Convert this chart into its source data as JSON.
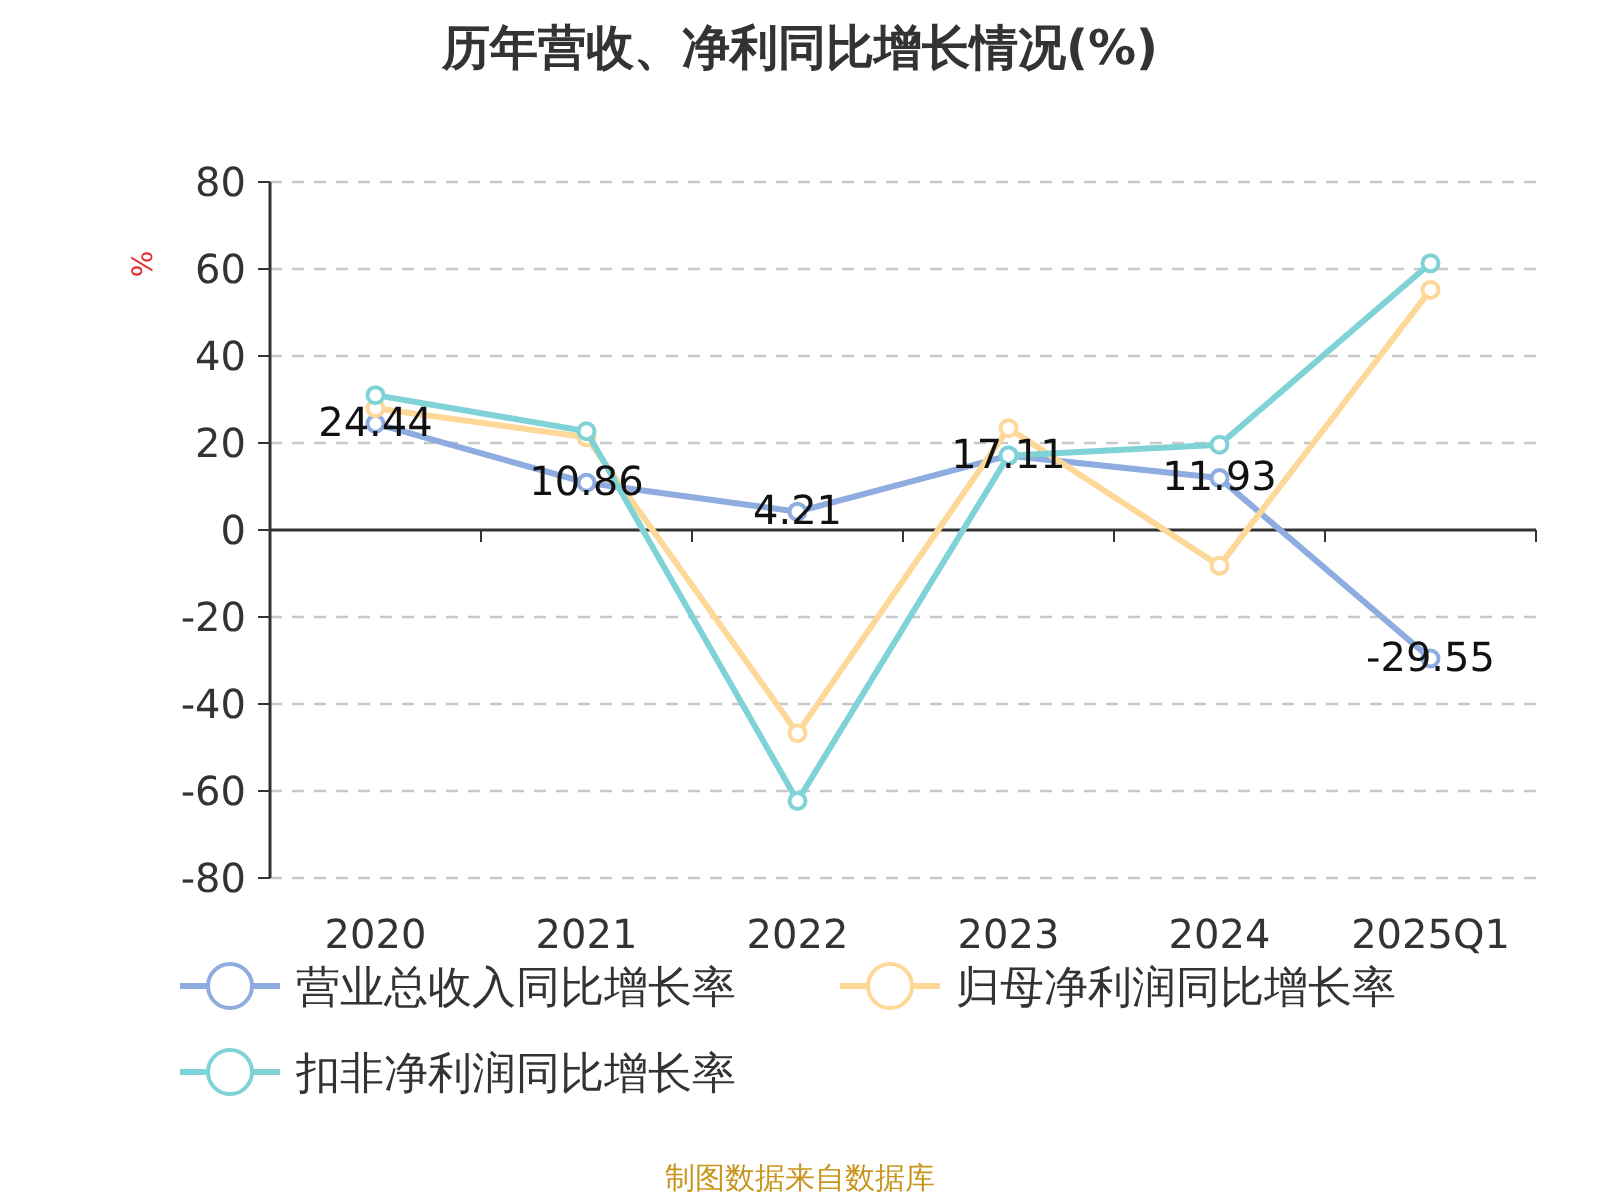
{
  "chart_data": {
    "type": "line",
    "title": "历年营收、净利同比增长情况(%)",
    "ylabel": "%",
    "categories": [
      "2020",
      "2021",
      "2022",
      "2023",
      "2024",
      "2025Q1"
    ],
    "series": [
      {
        "name": "营业总收入同比增长率",
        "color": "#8eacdf",
        "values": [
          24.44,
          10.86,
          4.21,
          17.11,
          11.93,
          -29.55
        ],
        "value_labels": [
          "24.44",
          "10.86",
          "4.21",
          "17.11",
          "11.93",
          "-29.55"
        ]
      },
      {
        "name": "归母净利润同比增长率",
        "color": "#fdd898",
        "values": [
          28,
          21.3,
          -46.7,
          23.4,
          -8.2,
          55.2
        ]
      },
      {
        "name": "扣非净利润同比增长率",
        "color": "#7fd3d6",
        "values": [
          31,
          22.7,
          -62.3,
          17.1,
          19.6,
          61.3
        ]
      }
    ],
    "ylim": [
      -80,
      80
    ],
    "yticks": [
      -80,
      -60,
      -40,
      -20,
      0,
      20,
      40,
      60,
      80
    ],
    "grid": "y",
    "legend": "bottom",
    "marker": "circle",
    "line_style": "solid",
    "annotations": [
      "制图数据来自数据库"
    ]
  }
}
